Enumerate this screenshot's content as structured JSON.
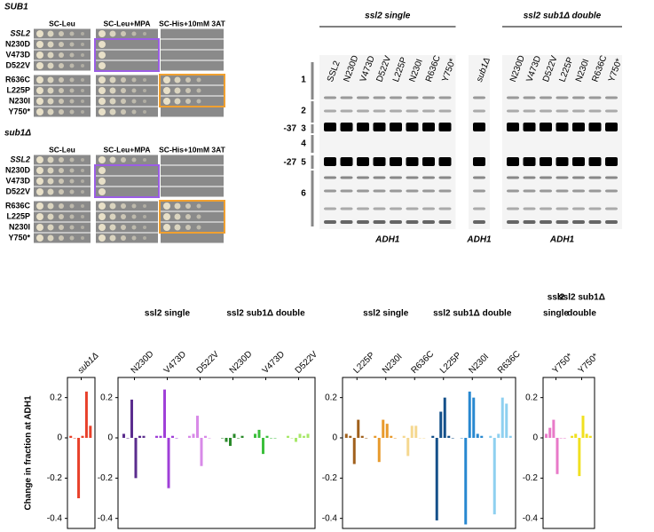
{
  "spot_assay": {
    "conditions": [
      "SC-Leu",
      "SC-Leu+MPA",
      "SC-His+10mM 3AT"
    ],
    "panels": [
      {
        "title": "SUB1",
        "strains": [
          "SSL2",
          "N230D",
          "V473D",
          "D522V",
          "R636C",
          "L225P",
          "N230I",
          "Y750*"
        ]
      },
      {
        "title": "sub1Δ",
        "strains": [
          "SSL2",
          "N230D",
          "V473D",
          "D522V",
          "R636C",
          "L225P",
          "N230I",
          "Y750*"
        ]
      }
    ]
  },
  "gel": {
    "markers": [
      "-37",
      "-27"
    ],
    "regions": [
      "1",
      "2",
      "3",
      "4",
      "5",
      "6"
    ],
    "groups": [
      {
        "title": "ssl2 single",
        "lanes": [
          "SSL2",
          "N230D",
          "V473D",
          "D522V",
          "L225P",
          "N230I",
          "R636C",
          "Y750*"
        ],
        "footer": "ADH1"
      },
      {
        "lanes": [
          "sub1Δ"
        ],
        "footer": "ADH1"
      },
      {
        "title": "ssl2 sub1Δ double",
        "lanes": [
          "N230D",
          "V473D",
          "D522V",
          "L225P",
          "N230I",
          "R636C",
          "Y750*"
        ],
        "footer": "ADH1"
      }
    ]
  },
  "chart_data": [
    {
      "type": "bar",
      "ylabel": "Change in fraction at ADH1",
      "ylim": [
        -0.45,
        0.3
      ],
      "yticks": [
        0.2,
        0,
        -0.2,
        -0.4
      ],
      "headers": [],
      "series": [
        {
          "name": "sub1Δ",
          "color": "#e8402a",
          "values": [
            0.01,
            0,
            -0.3,
            0.01,
            0.23,
            0.06
          ]
        }
      ]
    },
    {
      "type": "bar",
      "ylim": [
        -0.45,
        0.3
      ],
      "yticks": [
        0.2,
        0,
        -0.2,
        -0.4
      ],
      "headers": [
        [
          "ssl2 single"
        ],
        [
          "ssl2 sub1Δ double"
        ]
      ],
      "series": [
        {
          "name": "N230D",
          "color": "#5b2d8e",
          "values": [
            0.02,
            0,
            0.19,
            -0.2,
            0.01,
            0.01
          ]
        },
        {
          "name": "V473D",
          "color": "#a040d8",
          "values": [
            0.01,
            0.01,
            0.24,
            -0.25,
            0.01,
            0
          ]
        },
        {
          "name": "D522V",
          "color": "#d88ae8",
          "values": [
            0.01,
            0.02,
            0.11,
            -0.14,
            0.01,
            0
          ]
        },
        {
          "name": "N230D",
          "color": "#2a8a2a",
          "values": [
            0,
            -0.02,
            -0.04,
            0.02,
            0,
            0.01
          ]
        },
        {
          "name": "V473D",
          "color": "#3cbf3c",
          "values": [
            0.02,
            0.04,
            -0.08,
            0.01,
            0,
            0
          ]
        },
        {
          "name": "D522V",
          "color": "#a8e86a",
          "values": [
            0.01,
            0,
            -0.02,
            0.02,
            0.01,
            0.02
          ]
        }
      ]
    },
    {
      "type": "bar",
      "ylim": [
        -0.45,
        0.3
      ],
      "yticks": [
        0.2,
        0,
        -0.2,
        -0.4
      ],
      "headers": [
        [
          "ssl2 single"
        ],
        [
          "ssl2 sub1Δ double"
        ]
      ],
      "series": [
        {
          "name": "L225P",
          "color": "#a0601c",
          "values": [
            0.02,
            0.01,
            -0.13,
            0.09,
            0.01,
            0
          ]
        },
        {
          "name": "N230I",
          "color": "#e89a2c",
          "values": [
            0.01,
            -0.12,
            0.09,
            0.07,
            0.01,
            0
          ]
        },
        {
          "name": "R636C",
          "color": "#f5d890",
          "values": [
            0.01,
            -0.09,
            0.06,
            0.06,
            0,
            0
          ]
        },
        {
          "name": "L225P",
          "color": "#14508a",
          "values": [
            0.01,
            -0.41,
            0.13,
            0.2,
            0.01,
            0
          ]
        },
        {
          "name": "N230I",
          "color": "#2888d0",
          "values": [
            0,
            -0.43,
            0.23,
            0.2,
            0.02,
            0.01
          ]
        },
        {
          "name": "R636C",
          "color": "#8ed0f0",
          "values": [
            0.01,
            -0.38,
            0.02,
            0.2,
            0.17,
            0.01
          ]
        }
      ]
    },
    {
      "type": "bar",
      "ylim": [
        -0.45,
        0.3
      ],
      "yticks": [
        0.2,
        0,
        -0.2,
        -0.4
      ],
      "headers": [
        [
          "ssl2",
          "single"
        ],
        [
          "ssl2 sub1Δ",
          "double"
        ]
      ],
      "series": [
        {
          "name": "Y750*",
          "color": "#e87ac8",
          "values": [
            0.02,
            0.05,
            0.09,
            -0.18,
            0,
            0
          ]
        },
        {
          "name": "Y750*",
          "color": "#f0e020",
          "values": [
            0.01,
            0.02,
            -0.19,
            0.11,
            0.02,
            0.01
          ]
        }
      ]
    }
  ]
}
